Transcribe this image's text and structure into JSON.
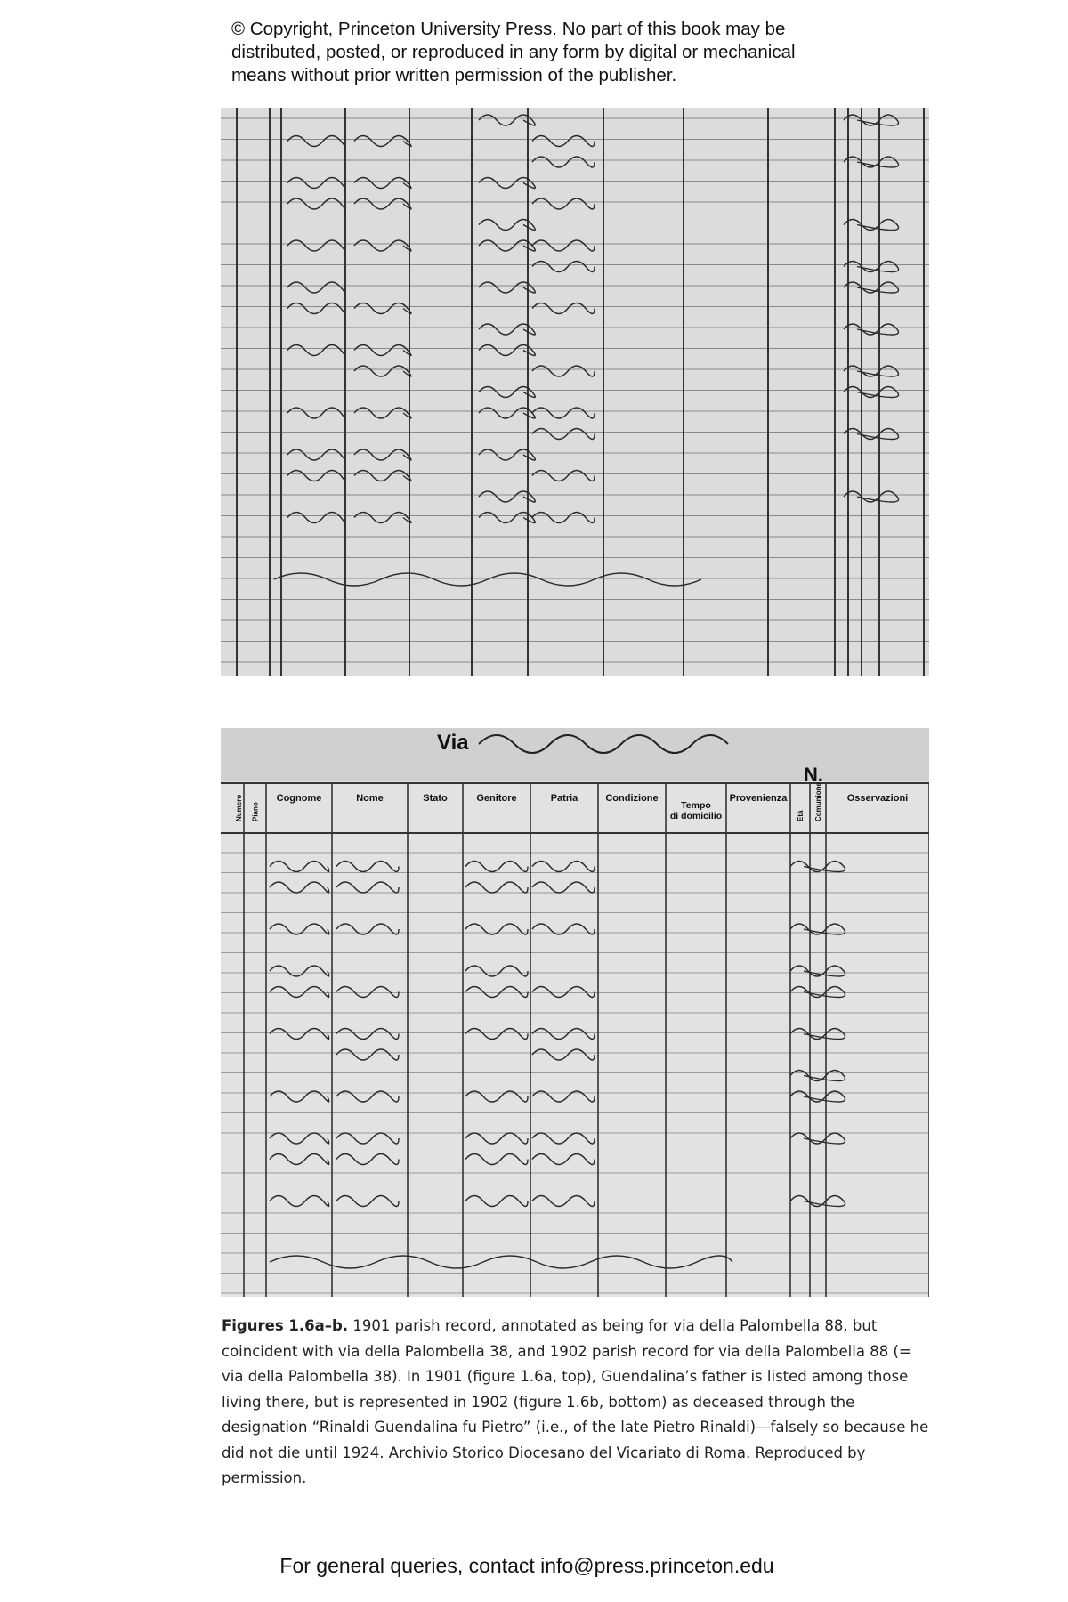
{
  "header": {
    "copyright": [
      "© Copyright, Princeton University Press. No part of this book may be",
      "distributed, posted, or reproduced in any form by digital or mechanical",
      "means without prior written permission of the publisher."
    ]
  },
  "figure_b": {
    "street_label": "Via",
    "number_label": "N.",
    "columns": [
      "Numero",
      "Piano",
      "Cognome",
      "Nome",
      "Stato",
      "Genitore",
      "Patria",
      "Condizione",
      [
        "Tempo",
        "di domicilio"
      ],
      "Provenienza",
      "Età",
      "Comunione",
      "Osservazioni"
    ]
  },
  "caption": {
    "label": "Figures 1.6a–b.",
    "text": "1901 parish record, annotated as being for via della Palombella 88, but coincident with via della Palombella 38, and 1902 parish record for via della Palombella 88 (= via della Palombella 38). In 1901 (figure 1.6a, top), Guendalina’s father is listed among those living there, but is represented in 1902 (figure 1.6b, bottom) as deceased through the designation “Rinaldi Guendalina fu Pietro” (i.e., of the late Pietro Rinaldi)—falsely so because he did not die until 1924. Archivio Storico Diocesano del Vicariato di Roma. Reproduced by permission."
  },
  "footer": {
    "contact": "For general queries, contact info@press.princeton.edu"
  }
}
